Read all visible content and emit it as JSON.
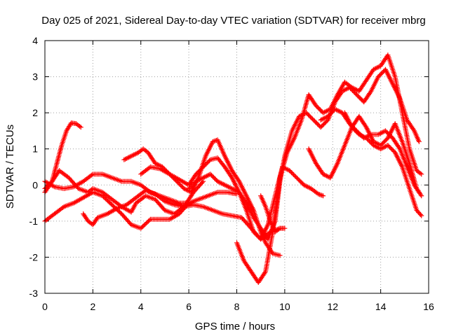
{
  "chart_data": {
    "type": "scatter",
    "title": "Day 025 of 2021, Sidereal Day-to-day VTEC variation (SDTVAR) for receiver mbrg",
    "xlabel": "GPS time / hours",
    "ylabel": "SDTVAR / TECUs",
    "xlim": [
      0,
      16
    ],
    "ylim": [
      -3,
      4
    ],
    "xticks": [
      0,
      2,
      4,
      6,
      8,
      10,
      12,
      14,
      16
    ],
    "yticks": [
      -3,
      -2,
      -1,
      0,
      1,
      2,
      3,
      4
    ],
    "grid": true,
    "marker": "+",
    "color": "#ff0000",
    "series": [
      {
        "x": [
          0.0,
          0.3,
          0.5,
          0.7,
          0.9,
          1.1,
          1.3,
          1.5
        ],
        "y": [
          -0.2,
          0.1,
          0.6,
          1.1,
          1.5,
          1.72,
          1.7,
          1.6
        ]
      },
      {
        "x": [
          0.0,
          0.4,
          0.8,
          1.2,
          1.6,
          2.0,
          2.4,
          2.8,
          3.2,
          3.6,
          4.0,
          4.4,
          4.8,
          5.2,
          5.6,
          6.0,
          6.4,
          6.8,
          7.2,
          7.6,
          8.0
        ],
        "y": [
          0.1,
          -0.05,
          -0.1,
          -0.05,
          0.1,
          0.3,
          0.3,
          0.2,
          0.1,
          0.1,
          0.0,
          -0.2,
          -0.3,
          -0.4,
          -0.5,
          -0.5,
          -0.4,
          -0.3,
          -0.2,
          -0.2,
          -0.25
        ]
      },
      {
        "x": [
          0.0,
          0.4,
          0.8,
          1.2,
          1.6,
          2.0,
          2.4,
          2.8,
          3.2,
          3.6,
          4.0,
          4.4,
          4.8,
          5.2,
          5.6,
          6.0
        ],
        "y": [
          -1.0,
          -0.8,
          -0.6,
          -0.5,
          -0.35,
          -0.2,
          -0.3,
          -0.55,
          -0.8,
          -1.1,
          -1.2,
          -0.95,
          -0.95,
          -0.95,
          -0.8,
          -0.5
        ]
      },
      {
        "x": [
          0.0,
          0.3,
          0.6,
          1.0,
          1.4,
          1.8,
          2.0,
          2.4,
          2.8,
          3.2,
          3.6,
          3.8,
          4.2,
          4.6,
          5.0,
          5.4,
          5.8,
          6.2,
          6.6
        ],
        "y": [
          -0.1,
          0.1,
          0.4,
          0.2,
          -0.1,
          -0.2,
          -0.1,
          -0.2,
          -0.4,
          -0.6,
          -0.75,
          -0.5,
          -0.3,
          -0.4,
          -0.7,
          -0.8,
          -0.6,
          -0.2,
          0.1
        ]
      },
      {
        "x": [
          1.6,
          1.8,
          2.0,
          2.2,
          2.6,
          3.0,
          3.4,
          3.8,
          4.2,
          4.6,
          5.0,
          5.4,
          5.8,
          6.2,
          6.6,
          7.0,
          7.4,
          7.8,
          8.2,
          8.6,
          9.0,
          9.4,
          9.8
        ],
        "y": [
          -0.8,
          -1.0,
          -1.1,
          -0.9,
          -0.8,
          -0.65,
          -0.55,
          -0.35,
          -0.15,
          -0.25,
          -0.45,
          -0.55,
          -0.6,
          -0.55,
          -0.6,
          -0.7,
          -0.8,
          -0.85,
          -0.9,
          -1.2,
          -1.5,
          -1.3,
          -1.2
        ]
      },
      {
        "x": [
          3.3,
          3.6,
          3.9,
          4.1,
          4.3,
          4.6,
          4.9,
          5.2,
          5.5,
          5.8,
          6.1,
          6.4,
          6.7,
          7.0,
          7.2,
          7.5,
          7.8,
          8.1,
          8.4,
          8.7,
          9.0,
          9.2,
          9.5,
          9.8
        ],
        "y": [
          0.7,
          0.8,
          0.9,
          1.0,
          0.9,
          0.6,
          0.5,
          0.3,
          0.1,
          -0.1,
          -0.2,
          0.2,
          0.8,
          1.2,
          1.25,
          0.8,
          0.4,
          0.1,
          -0.3,
          -0.7,
          -1.3,
          -1.6,
          -1.9,
          -1.95
        ]
      },
      {
        "x": [
          4.0,
          4.4,
          4.8,
          5.2,
          5.6,
          6.0,
          6.3,
          6.6,
          6.9,
          7.2,
          7.5,
          7.8,
          8.1,
          8.4,
          8.7,
          9.0,
          9.3,
          9.6,
          9.9,
          10.2,
          10.5,
          10.8,
          11.1,
          11.4,
          11.6
        ],
        "y": [
          0.3,
          0.5,
          0.45,
          0.3,
          0.15,
          0.0,
          0.3,
          0.5,
          0.7,
          0.75,
          0.5,
          0.2,
          -0.2,
          -0.7,
          -1.3,
          -1.5,
          -1.1,
          -0.3,
          0.5,
          0.4,
          0.2,
          0.0,
          -0.1,
          -0.25,
          -0.3
        ]
      },
      {
        "x": [
          6.0,
          6.3,
          6.6,
          6.9,
          7.2,
          7.5,
          7.8,
          8.1,
          8.4,
          8.7,
          9.0,
          9.3,
          9.6,
          9.8,
          10.0,
          10.3,
          10.6,
          10.9,
          11.2,
          11.5,
          11.8,
          12.1,
          12.4,
          12.7,
          13.0,
          13.3,
          13.6,
          13.9,
          14.2,
          14.5,
          14.8,
          15.1,
          15.4,
          15.6
        ],
        "y": [
          -0.1,
          0.1,
          0.2,
          0.3,
          0.1,
          0.0,
          -0.1,
          -0.2,
          -0.5,
          -0.9,
          -1.2,
          -1.5,
          -1.0,
          0.1,
          0.8,
          1.5,
          1.9,
          2.0,
          1.8,
          1.6,
          1.8,
          2.3,
          2.6,
          2.7,
          2.5,
          2.3,
          2.6,
          3.0,
          3.2,
          2.8,
          2.4,
          1.8,
          1.5,
          1.2
        ]
      },
      {
        "x": [
          8.0,
          8.3,
          8.6,
          8.9,
          9.2,
          9.5,
          9.8,
          10.1,
          10.4,
          10.7,
          11.0,
          11.3,
          11.6,
          11.9,
          12.2,
          12.5,
          12.8,
          13.1,
          13.4,
          13.7,
          14.0,
          14.3,
          14.6,
          14.9,
          15.2,
          15.5,
          15.7
        ],
        "y": [
          -1.6,
          -2.1,
          -2.4,
          -2.7,
          -2.4,
          -1.3,
          0.2,
          0.9,
          1.3,
          1.8,
          2.5,
          2.2,
          2.0,
          2.1,
          2.5,
          2.85,
          2.7,
          2.6,
          2.9,
          3.2,
          3.3,
          3.6,
          3.0,
          2.0,
          1.0,
          0.4,
          0.3
        ]
      },
      {
        "x": [
          11.0,
          11.3,
          11.6,
          11.9,
          12.2,
          12.5,
          12.8,
          13.1,
          13.4,
          13.7,
          14.0,
          14.3,
          14.6,
          14.9,
          15.2,
          15.5,
          15.7
        ],
        "y": [
          1.0,
          0.6,
          0.3,
          0.2,
          0.6,
          1.1,
          1.6,
          1.9,
          1.6,
          1.2,
          1.1,
          1.3,
          1.7,
          1.2,
          0.6,
          -0.1,
          -0.3
        ]
      },
      {
        "x": [
          11.5,
          11.8,
          12.1,
          12.4,
          12.7,
          13.0,
          13.3,
          13.6,
          13.9,
          14.2,
          14.5,
          14.8,
          15.1,
          15.4,
          15.6
        ],
        "y": [
          1.8,
          1.9,
          2.1,
          2.0,
          1.7,
          1.5,
          1.3,
          1.4,
          1.4,
          1.5,
          1.3,
          1.0,
          0.5,
          0.0,
          -0.2
        ]
      },
      {
        "x": [
          12.5,
          12.8,
          13.1,
          13.4,
          13.7,
          14.0,
          14.3,
          14.6,
          14.9,
          15.2,
          15.5,
          15.7
        ],
        "y": [
          2.0,
          1.6,
          1.4,
          1.3,
          1.1,
          1.0,
          1.1,
          0.9,
          0.5,
          -0.1,
          -0.7,
          -0.85
        ]
      },
      {
        "x": [
          9.0,
          9.2,
          9.4,
          9.6,
          9.8,
          10.0
        ],
        "y": [
          -0.3,
          -0.6,
          -1.0,
          -1.3,
          -1.2,
          -1.2
        ]
      }
    ]
  }
}
